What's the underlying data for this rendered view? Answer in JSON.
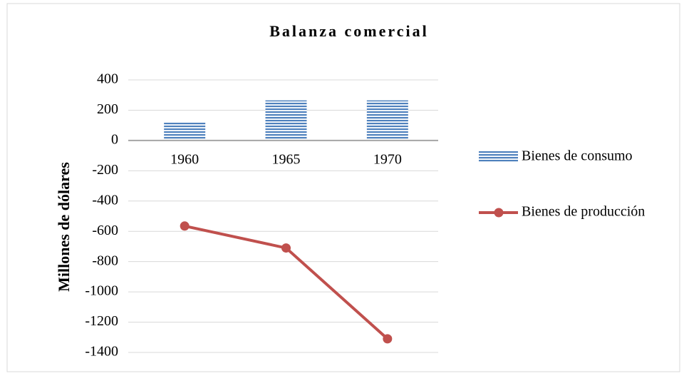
{
  "chart_data": {
    "type": "bar_line",
    "title": "Balanza comercial",
    "y_label": "Millones de dólares",
    "categories": [
      "1960",
      "1965",
      "1970"
    ],
    "series": [
      {
        "name": "Bienes de consumo",
        "type": "bar",
        "color": "#4f81bd",
        "values": [
          120,
          265,
          265
        ]
      },
      {
        "name": "Bienes de producción",
        "type": "line",
        "color": "#c0504d",
        "values": [
          -565,
          -710,
          -1310
        ]
      }
    ],
    "ylim": [
      -1400,
      400
    ],
    "yticks": [
      400,
      200,
      0,
      -200,
      -400,
      -600,
      -800,
      -1000,
      -1200,
      -1400
    ],
    "grid": true,
    "legend": "right"
  }
}
